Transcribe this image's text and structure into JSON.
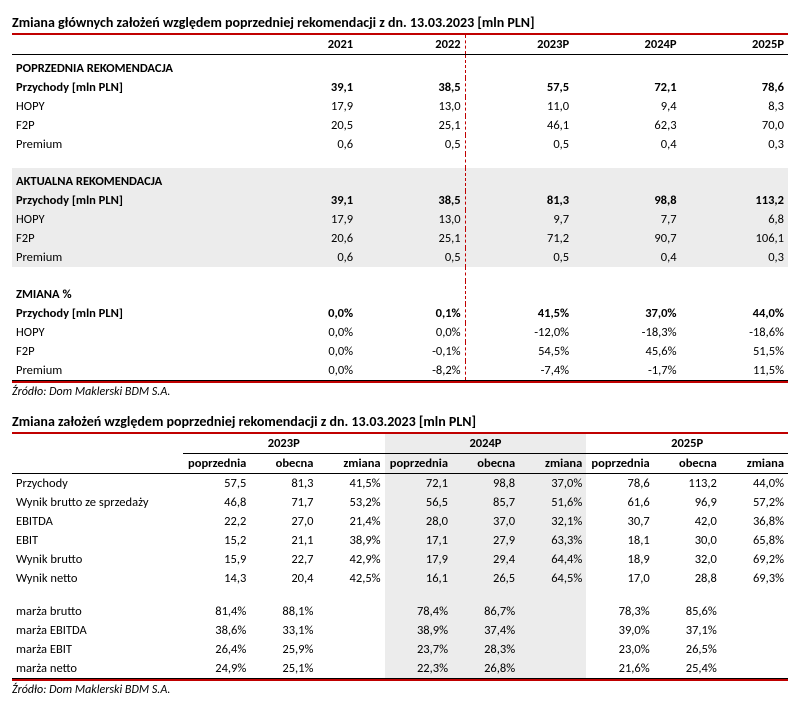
{
  "t1": {
    "title": "Zmiana głównych założeń względem poprzedniej rekomendacji  z dn. 13.03.2023  [mln PLN]",
    "years": [
      "2021",
      "2022",
      "2023P",
      "2024P",
      "2025P"
    ],
    "g1": {
      "head": "POPRZEDNIA REKOMENDACJA",
      "r1": [
        "Przychody [mln PLN]",
        "39,1",
        "38,5",
        "57,5",
        "72,1",
        "78,6"
      ],
      "r2": [
        "HOPY",
        "17,9",
        "13,0",
        "11,0",
        "9,4",
        "8,3"
      ],
      "r3": [
        "F2P",
        "20,5",
        "25,1",
        "46,1",
        "62,3",
        "70,0"
      ],
      "r4": [
        "Premium",
        "0,6",
        "0,5",
        "0,5",
        "0,4",
        "0,3"
      ]
    },
    "g2": {
      "head": "AKTUALNA REKOMENDACJA",
      "r1": [
        "Przychody [mln PLN]",
        "39,1",
        "38,5",
        "81,3",
        "98,8",
        "113,2"
      ],
      "r2": [
        "HOPY",
        "17,9",
        "13,0",
        "9,7",
        "7,7",
        "6,8"
      ],
      "r3": [
        "F2P",
        "20,6",
        "25,1",
        "71,2",
        "90,7",
        "106,1"
      ],
      "r4": [
        "Premium",
        "0,6",
        "0,5",
        "0,5",
        "0,4",
        "0,3"
      ]
    },
    "g3": {
      "head": "ZMIANA %",
      "r1": [
        "Przychody [mln PLN]",
        "0,0%",
        "0,1%",
        "41,5%",
        "37,0%",
        "44,0%"
      ],
      "r2": [
        "HOPY",
        "0,0%",
        "0,0%",
        "-12,0%",
        "-18,3%",
        "-18,6%"
      ],
      "r3": [
        "F2P",
        "0,0%",
        "-0,1%",
        "54,5%",
        "45,6%",
        "51,5%"
      ],
      "r4": [
        "Premium",
        "0,0%",
        "-8,2%",
        "-7,4%",
        "-1,7%",
        "11,5%"
      ]
    },
    "source": "Źródło: Dom Maklerski BDM S.A."
  },
  "t2": {
    "title": "Zmiana założeń względem poprzedniej rekomendacji  z dn. 13.03.2023 [mln PLN]",
    "years": [
      "2023P",
      "2024P",
      "2025P"
    ],
    "sub": [
      "poprzednia",
      "obecna",
      "zmiana"
    ],
    "rows": [
      [
        "Przychody",
        "57,5",
        "81,3",
        "41,5%",
        "72,1",
        "98,8",
        "37,0%",
        "78,6",
        "113,2",
        "44,0%"
      ],
      [
        "Wynik brutto ze sprzedaży",
        "46,8",
        "71,7",
        "53,2%",
        "56,5",
        "85,7",
        "51,6%",
        "61,6",
        "96,9",
        "57,2%"
      ],
      [
        "EBITDA",
        "22,2",
        "27,0",
        "21,4%",
        "28,0",
        "37,0",
        "32,1%",
        "30,7",
        "42,0",
        "36,8%"
      ],
      [
        "EBIT",
        "15,2",
        "21,1",
        "38,9%",
        "17,1",
        "27,9",
        "63,3%",
        "18,1",
        "30,0",
        "65,8%"
      ],
      [
        "Wynik brutto",
        "15,9",
        "22,7",
        "42,9%",
        "17,9",
        "29,4",
        "64,4%",
        "18,9",
        "32,0",
        "69,2%"
      ],
      [
        "Wynik netto",
        "14,3",
        "20,4",
        "42,5%",
        "16,1",
        "26,5",
        "64,5%",
        "17,0",
        "28,8",
        "69,3%"
      ]
    ],
    "mrows": [
      [
        "marża brutto",
        "81,4%",
        "88,1%",
        "",
        "78,4%",
        "86,7%",
        "",
        "78,3%",
        "85,6%",
        ""
      ],
      [
        "marża EBITDA",
        "38,6%",
        "33,1%",
        "",
        "38,9%",
        "37,4%",
        "",
        "39,0%",
        "37,1%",
        ""
      ],
      [
        "marża EBIT",
        "26,4%",
        "25,9%",
        "",
        "23,7%",
        "28,3%",
        "",
        "23,0%",
        "26,5%",
        ""
      ],
      [
        "marża netto",
        "24,9%",
        "25,1%",
        "",
        "22,3%",
        "26,8%",
        "",
        "21,6%",
        "25,4%",
        ""
      ]
    ],
    "source": "Źródło: Dom Maklerski BDM S.A."
  }
}
